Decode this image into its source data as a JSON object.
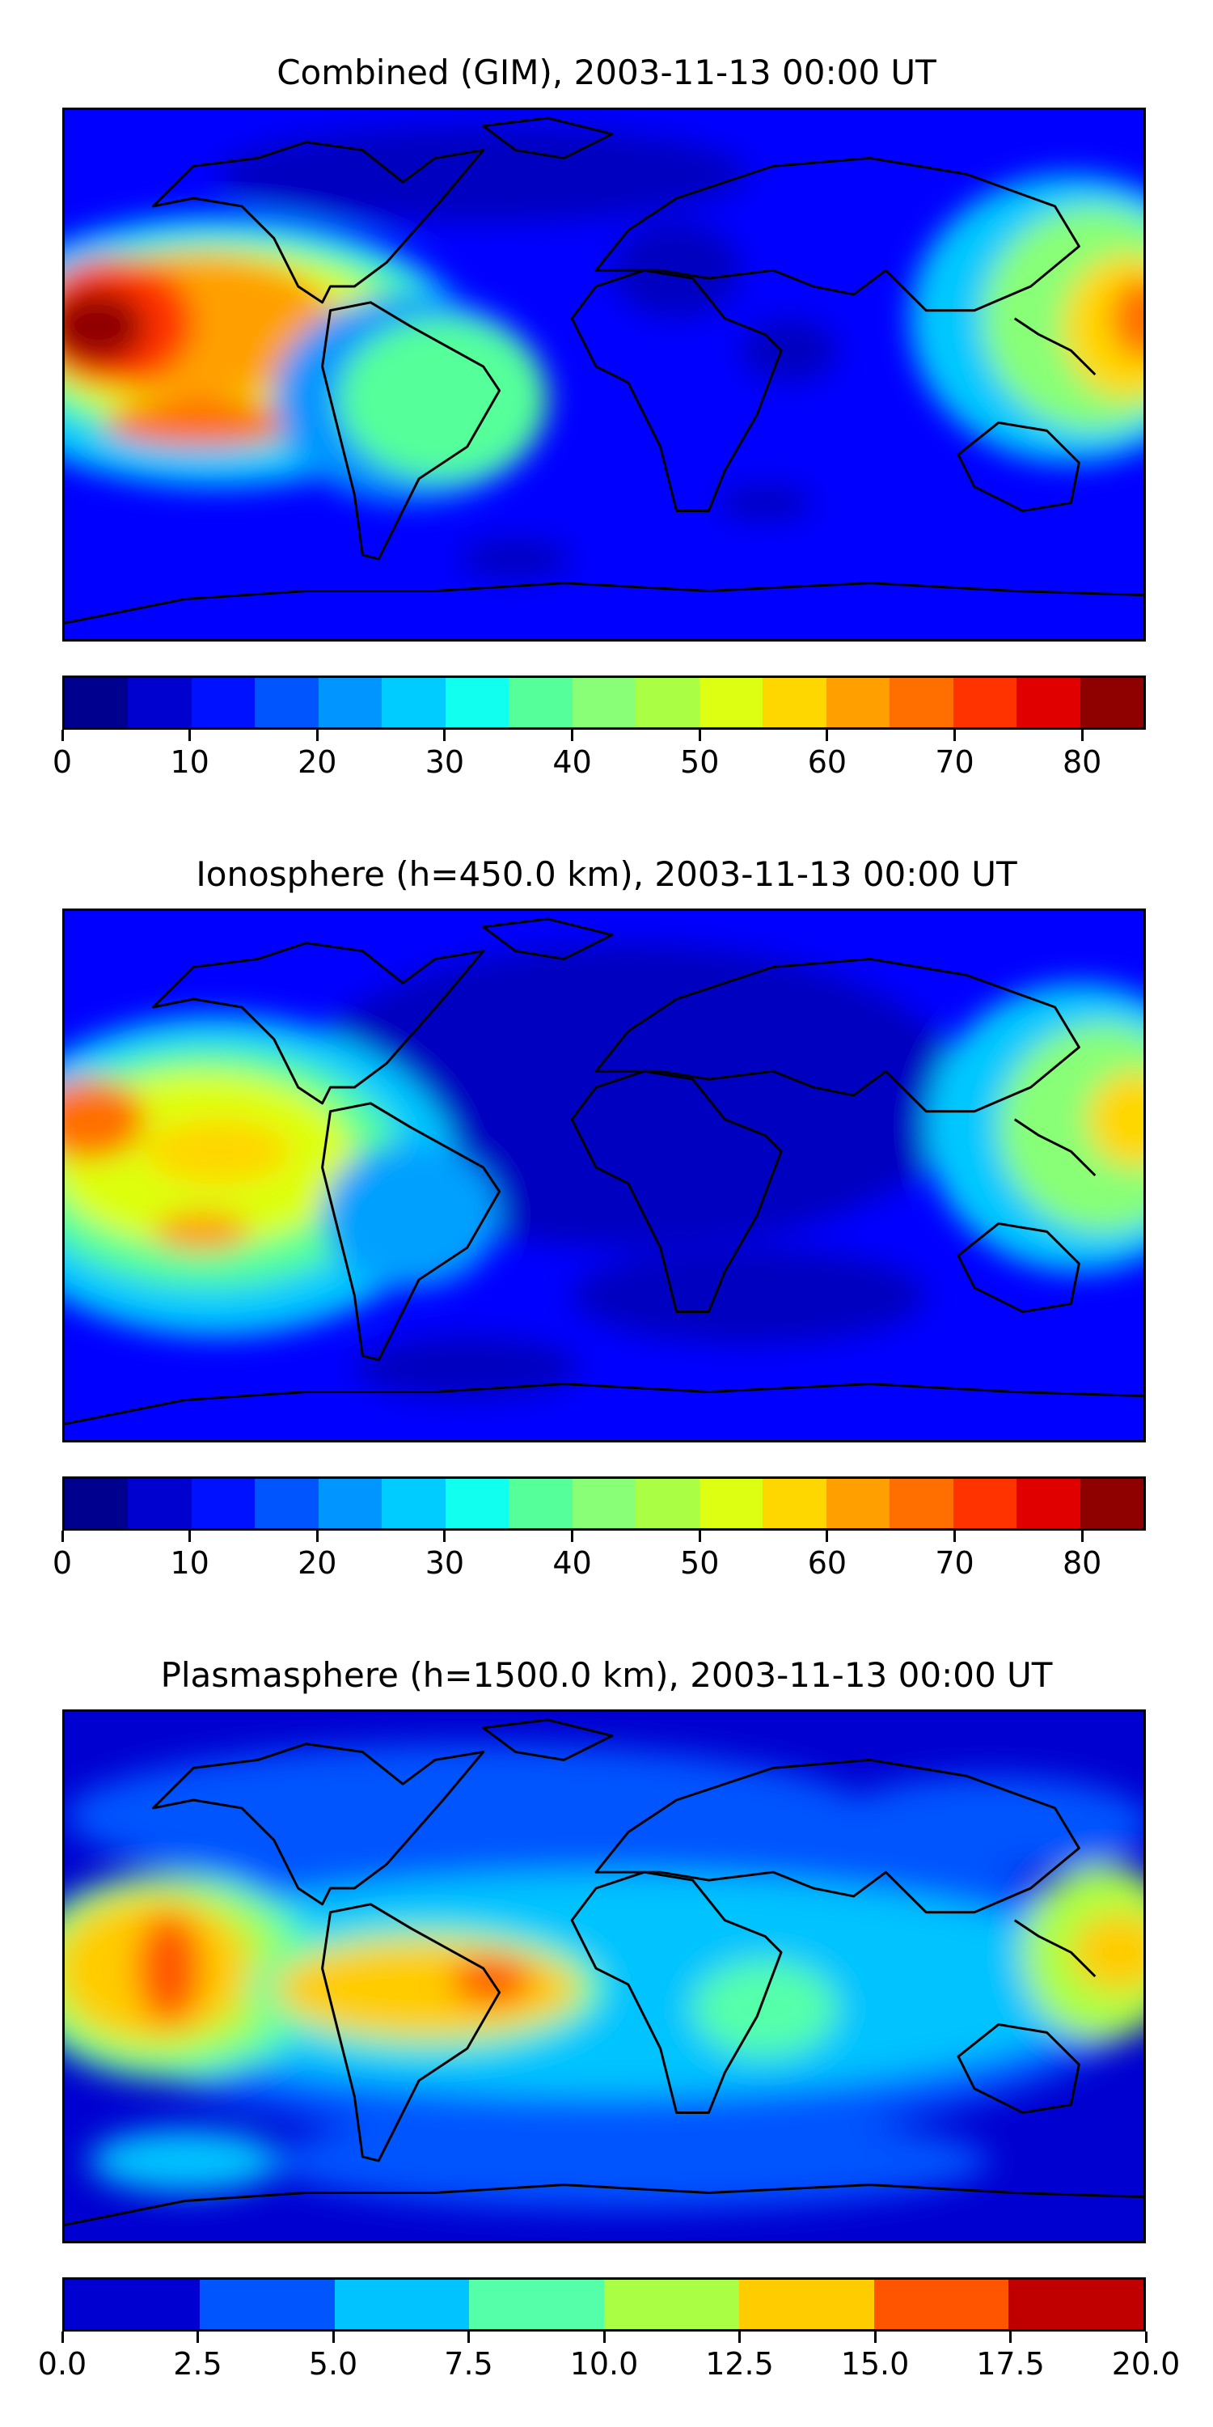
{
  "panels": [
    {
      "title": "Combined (GIM), 2003-11-13 00:00 UT",
      "colorbar": {
        "min": 0,
        "max": 85,
        "step": 5,
        "colors": [
          "#00008f",
          "#0000cf",
          "#0011ff",
          "#0055ff",
          "#0095ff",
          "#00ccff",
          "#11ffee",
          "#55ff9a",
          "#88ff77",
          "#aaff44",
          "#ddff11",
          "#ffd700",
          "#ffa000",
          "#ff6f00",
          "#ff3300",
          "#e00000",
          "#8f0000"
        ],
        "tick_labels": [
          "0",
          "10",
          "20",
          "30",
          "40",
          "50",
          "60",
          "70",
          "80"
        ],
        "tick_values": [
          0,
          10,
          20,
          30,
          40,
          50,
          60,
          70,
          80
        ]
      }
    },
    {
      "title": "Ionosphere  (h=450.0 km), 2003-11-13 00:00 UT",
      "colorbar": {
        "min": 0,
        "max": 85,
        "step": 5,
        "colors": [
          "#00008f",
          "#0000cf",
          "#0011ff",
          "#0055ff",
          "#0095ff",
          "#00ccff",
          "#11ffee",
          "#55ff9a",
          "#88ff77",
          "#aaff44",
          "#ddff11",
          "#ffd700",
          "#ffa000",
          "#ff6f00",
          "#ff3300",
          "#e00000",
          "#8f0000"
        ],
        "tick_labels": [
          "0",
          "10",
          "20",
          "30",
          "40",
          "50",
          "60",
          "70",
          "80"
        ],
        "tick_values": [
          0,
          10,
          20,
          30,
          40,
          50,
          60,
          70,
          80
        ]
      }
    },
    {
      "title": "Plasmasphere (h=1500.0 km), 2003-11-13 00:00 UT",
      "colorbar": {
        "min": 0,
        "max": 20,
        "step": 2.5,
        "colors": [
          "#0000d0",
          "#0055ff",
          "#00c3ff",
          "#55ffaa",
          "#aaff44",
          "#ffcc00",
          "#ff5500",
          "#c00000"
        ],
        "tick_labels": [
          "0.0",
          "2.5",
          "5.0",
          "7.5",
          "10.0",
          "12.5",
          "15.0",
          "17.5",
          "20.0"
        ],
        "tick_values": [
          0,
          2.5,
          5,
          7.5,
          10,
          12.5,
          15,
          17.5,
          20
        ]
      }
    }
  ]
}
